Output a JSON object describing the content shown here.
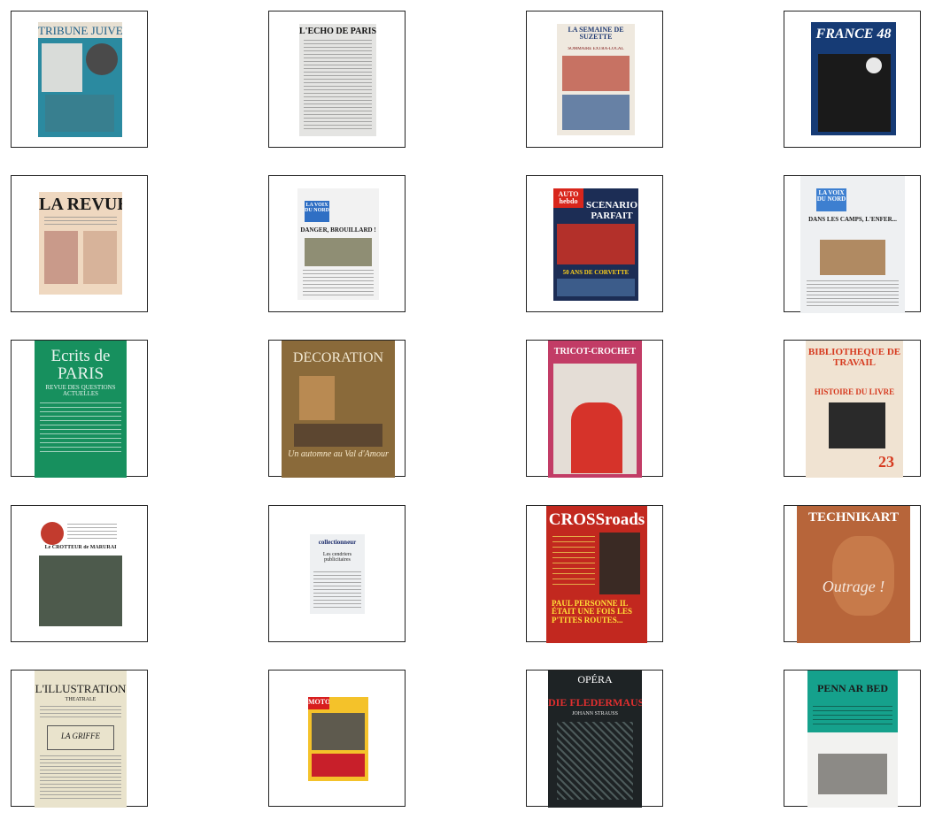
{
  "covers": [
    {
      "title": "TRIBUNE JUIVE"
    },
    {
      "title": "L'ÉCHO DE PARIS"
    },
    {
      "title": "LA SEMAINE DE SUZETTE",
      "subtitle": "SOMMAIRE EXTRA-LOCAL"
    },
    {
      "title": "FRANCE 48"
    },
    {
      "title": "LA REVUE"
    },
    {
      "title": "LA VOIX DU NORD",
      "headline": "DANGER, BROUILLARD !"
    },
    {
      "title": "AUTO hebdo",
      "headline": "SCÉNARIO PARFAIT",
      "footer": "50 ANS DE CORVETTE"
    },
    {
      "title": "LA VOIX DU NORD",
      "headline": "DANS LES CAMPS, L'ENFER..."
    },
    {
      "title": "Ecrits de PARIS",
      "subtitle": "REVUE DES QUESTIONS ACTUELLES"
    },
    {
      "title": "DÉCORATION",
      "subtitle": "Un automne au Val d'Amour"
    },
    {
      "title": "TRICOT-CROCHET"
    },
    {
      "title": "BIBLIOTHÈQUE DE TRAVAIL",
      "headline": "HISTOIRE DU LIVRE",
      "number": "23"
    },
    {
      "title": "Le CROTTEUR de MARURAI"
    },
    {
      "title": "collectionneur",
      "subtitle": "Les cendriers publicitaires"
    },
    {
      "title": "CROSSroads",
      "headline": "PAUL PERSONNE IL ÉTAIT UNE FOIS LES P'TITES ROUTES..."
    },
    {
      "title": "TECHNIKART",
      "headline": "Outrage !"
    },
    {
      "title": "L'ILLUSTRATION",
      "subtitle": "THÉATRALE",
      "headline": "LA GRIFFE"
    },
    {
      "title": "MOTO"
    },
    {
      "title": "OPÉRA",
      "headline": "DIE FLEDERMAUS",
      "subtitle": "JOHANN STRAUSS"
    },
    {
      "title": "PENN AR BED"
    }
  ]
}
